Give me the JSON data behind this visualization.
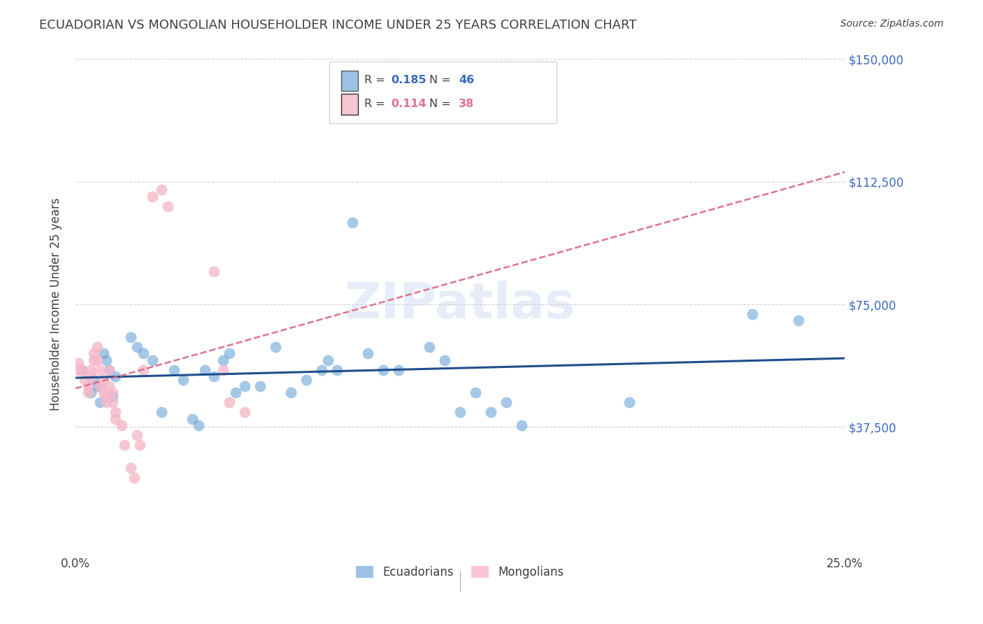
{
  "title": "ECUADORIAN VS MONGOLIAN HOUSEHOLDER INCOME UNDER 25 YEARS CORRELATION CHART",
  "source": "Source: ZipAtlas.com",
  "ylabel": "Householder Income Under 25 years",
  "watermark": "ZIPatlas",
  "xlim": [
    0.0,
    0.25
  ],
  "ylim": [
    0,
    150000
  ],
  "yticks": [
    0,
    37500,
    75000,
    112500,
    150000
  ],
  "xticks": [
    0.0,
    0.05,
    0.1,
    0.15,
    0.2,
    0.25
  ],
  "legend_r_blue": "0.185",
  "legend_n_blue": "46",
  "legend_r_pink": "0.114",
  "legend_n_pink": "38",
  "blue_color": "#5b9bd5",
  "pink_color": "#f4b8c8",
  "blue_line_color": "#1f4e8c",
  "pink_line_color": "#e07090",
  "grid_color": "#d0d0d8",
  "background_color": "#ffffff",
  "title_color": "#404040",
  "right_axis_color": "#3a6abf",
  "ecuadorians_x": [
    0.002,
    0.005,
    0.006,
    0.007,
    0.008,
    0.009,
    0.01,
    0.011,
    0.012,
    0.013,
    0.018,
    0.02,
    0.022,
    0.025,
    0.028,
    0.032,
    0.035,
    0.038,
    0.04,
    0.042,
    0.045,
    0.048,
    0.05,
    0.052,
    0.055,
    0.06,
    0.065,
    0.07,
    0.075,
    0.08,
    0.082,
    0.085,
    0.09,
    0.095,
    0.1,
    0.105,
    0.115,
    0.12,
    0.125,
    0.13,
    0.135,
    0.14,
    0.145,
    0.18,
    0.22,
    0.235
  ],
  "ecuadorians_y": [
    55000,
    48000,
    52000,
    50000,
    45000,
    60000,
    58000,
    55000,
    47000,
    53000,
    65000,
    62000,
    60000,
    58000,
    42000,
    55000,
    52000,
    40000,
    38000,
    55000,
    53000,
    58000,
    60000,
    48000,
    50000,
    50000,
    62000,
    48000,
    52000,
    55000,
    58000,
    55000,
    100000,
    60000,
    55000,
    55000,
    62000,
    58000,
    42000,
    48000,
    42000,
    45000,
    38000,
    45000,
    72000,
    70000
  ],
  "mongolians_x": [
    0.001,
    0.001,
    0.002,
    0.003,
    0.004,
    0.004,
    0.005,
    0.005,
    0.006,
    0.006,
    0.007,
    0.007,
    0.008,
    0.008,
    0.009,
    0.009,
    0.01,
    0.01,
    0.011,
    0.011,
    0.012,
    0.012,
    0.013,
    0.013,
    0.015,
    0.016,
    0.018,
    0.019,
    0.02,
    0.021,
    0.022,
    0.025,
    0.028,
    0.03,
    0.045,
    0.048,
    0.05,
    0.055
  ],
  "mongolians_y": [
    55000,
    57000,
    55000,
    52000,
    50000,
    48000,
    55000,
    53000,
    60000,
    58000,
    62000,
    58000,
    55000,
    50000,
    52000,
    48000,
    47000,
    45000,
    55000,
    50000,
    48000,
    45000,
    42000,
    40000,
    38000,
    32000,
    25000,
    22000,
    35000,
    32000,
    55000,
    108000,
    110000,
    105000,
    85000,
    55000,
    45000,
    42000
  ]
}
